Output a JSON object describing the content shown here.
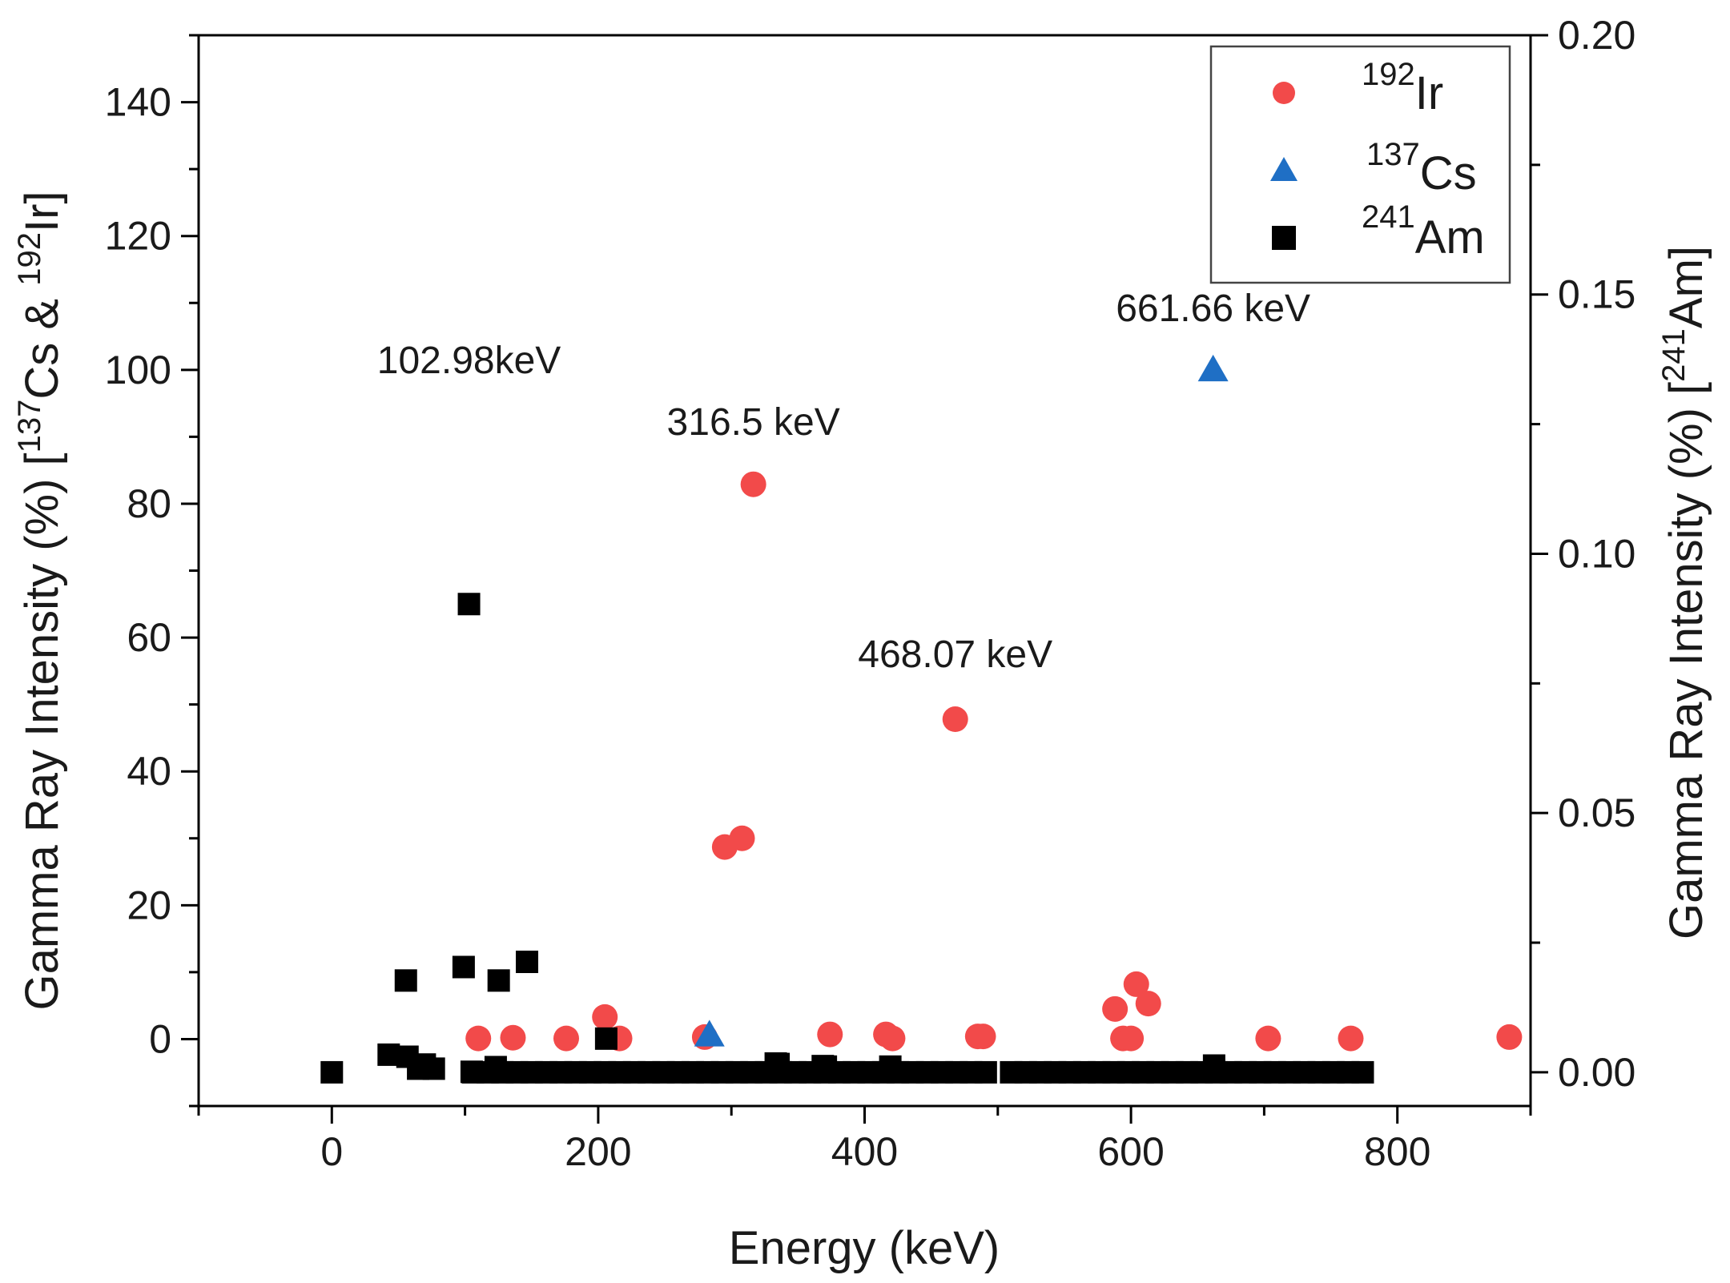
{
  "chart_data": {
    "type": "scatter",
    "xlabel": "Energy (keV)",
    "ylabel": {
      "prefix": "Gamma Ray Intensity (%) [",
      "sup1": "137",
      "mid": "Cs & ",
      "sup2": "192",
      "suffix": "Ir]"
    },
    "y2label": {
      "prefix": "Gamma Ray Intensity (%) [",
      "sup": "241",
      "suffix": "Am]"
    },
    "xlim": [
      -100,
      900
    ],
    "ylim": [
      -10,
      150
    ],
    "y2lim": [
      -0.0065,
      0.2
    ],
    "xticks": [
      0,
      200,
      400,
      600,
      800
    ],
    "yticks": [
      0,
      20,
      40,
      60,
      80,
      100,
      120,
      140
    ],
    "y2ticks": [
      0.0,
      0.05,
      0.1,
      0.15,
      0.2
    ],
    "y2ticklabels": [
      "0.00",
      "0.05",
      "0.10",
      "0.15",
      "0.20"
    ],
    "grid": false,
    "legend_position": "top-right",
    "series": [
      {
        "name": "192Ir",
        "legend_sup": "192",
        "legend_base": "Ir",
        "marker": "circle",
        "color": "#f24a4a",
        "axis": "left",
        "x": [
          110,
          136,
          176,
          205,
          216,
          280,
          295,
          308,
          316.5,
          374,
          416,
          421,
          468.07,
          485,
          489,
          588,
          594,
          600,
          604,
          613,
          703,
          765,
          884
        ],
        "y": [
          0.1,
          0.2,
          0.1,
          3.3,
          0.1,
          0.3,
          28.7,
          30.0,
          82.9,
          0.7,
          0.7,
          0.1,
          47.8,
          0.4,
          0.4,
          4.5,
          0.1,
          0.1,
          8.2,
          5.3,
          0.1,
          0.1,
          0.3
        ]
      },
      {
        "name": "137Cs",
        "legend_sup": "137",
        "legend_base": "Cs",
        "marker": "triangle",
        "color": "#1f6fc5",
        "axis": "left",
        "x": [
          283.5,
          661.66
        ],
        "y": [
          0.6,
          100
        ]
      },
      {
        "name": "241Am",
        "legend_sup": "241",
        "legend_base": "Am",
        "marker": "square",
        "color": "#000000",
        "axis": "right",
        "x": [
          0,
          42.7,
          55.6,
          56.8,
          64.8,
          69.8,
          76.6,
          98.97,
          102.98,
          105,
          123.05,
          125.3,
          146.55,
          206,
          333.3,
          335.4,
          368.6,
          370.9,
          419.3,
          662.4
        ],
        "y": [
          0.0,
          0.0034,
          0.0177,
          0.003,
          0.0007,
          0.0015,
          0.0007,
          0.0203,
          0.0903,
          0.0001,
          0.001,
          0.0177,
          0.0213,
          0.0065,
          0.0017,
          0.0016,
          0.0012,
          0.0011,
          0.0011,
          0.0013
        ],
        "baseline_ranges": [
          [
            106,
            500
          ],
          [
            510,
            775
          ]
        ],
        "baseline_value": 0.0
      }
    ],
    "annotations": [
      {
        "text": "102.98keV",
        "x": 102.98,
        "y": 99.5
      },
      {
        "text": "316.5 keV",
        "x": 316.5,
        "y": 90.3
      },
      {
        "text": "468.07 keV",
        "x": 468.07,
        "y": 55.6
      },
      {
        "text": "661.66 keV",
        "x": 661.66,
        "y": 107.3
      }
    ]
  }
}
